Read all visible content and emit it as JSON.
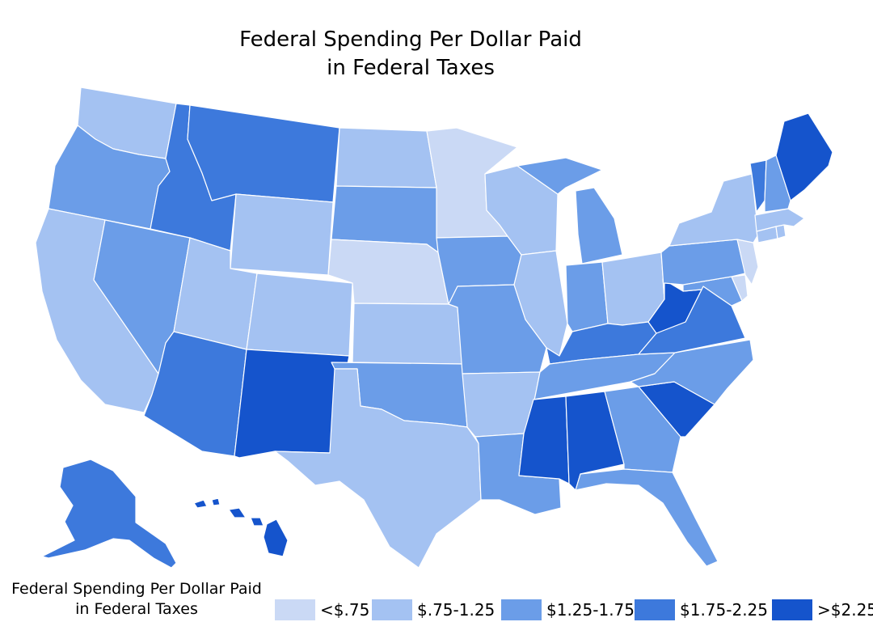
{
  "title_line1": "Federal Spending Per Dollar Paid",
  "title_line2": "in Federal Taxes",
  "legend": {
    "title_line1": "Federal Spending Per Dollar Paid",
    "title_line2": "in Federal Taxes",
    "items": [
      {
        "label": "<$.75",
        "color": "#cad9f5"
      },
      {
        "label": "$.75-1.25",
        "color": "#a4c2f2"
      },
      {
        "label": "$1.25-1.75",
        "color": "#6b9de8"
      },
      {
        "label": "$1.75-2.25",
        "color": "#3d79dc"
      },
      {
        "label": ">$2.25",
        "color": "#1554cc"
      }
    ]
  },
  "state_classes": {
    "WA": 1,
    "OR": 2,
    "CA": 1,
    "NV": 2,
    "ID": 3,
    "MT": 3,
    "WY": 1,
    "UT": 1,
    "AZ": 3,
    "CO": 1,
    "NM": 4,
    "ND": 1,
    "SD": 2,
    "NE": 0,
    "KS": 1,
    "OK": 2,
    "TX": 1,
    "MN": 0,
    "IA": 2,
    "MO": 2,
    "AR": 1,
    "LA": 2,
    "WI": 1,
    "IL": 1,
    "MI": 2,
    "IN": 2,
    "OH": 1,
    "KY": 3,
    "TN": 2,
    "MS": 4,
    "AL": 4,
    "GA": 2,
    "FL": 2,
    "SC": 4,
    "NC": 2,
    "VA": 3,
    "WV": 4,
    "MD": 2,
    "DE": 0,
    "NJ": 0,
    "PA": 2,
    "NY": 1,
    "CT": 1,
    "RI": 1,
    "MA": 1,
    "VT": 3,
    "NH": 2,
    "ME": 4,
    "AK": 3,
    "HI": 4
  }
}
